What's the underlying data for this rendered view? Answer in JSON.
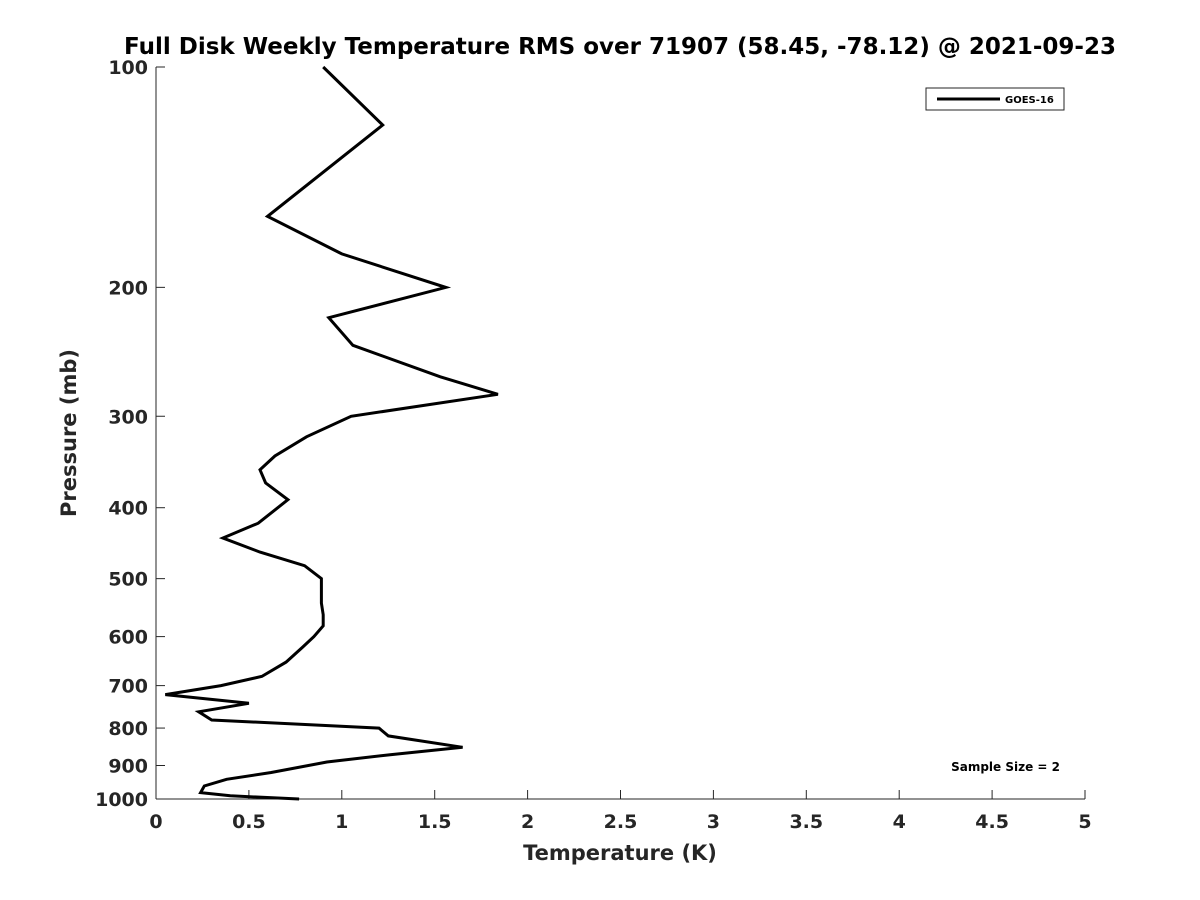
{
  "chart_data": {
    "type": "line",
    "title": "Full Disk Weekly Temperature RMS over 71907 (58.45, -78.12) @ 2021-09-23",
    "xlabel": "Temperature (K)",
    "ylabel": "Pressure (mb)",
    "xlim": [
      0,
      5
    ],
    "ylim": [
      1000,
      100
    ],
    "y_scale": "log",
    "y_direction": "reversed",
    "grid": false,
    "legend_position": "top-right",
    "x_ticks": [
      0,
      0.5,
      1,
      1.5,
      2,
      2.5,
      3,
      3.5,
      4,
      4.5,
      5
    ],
    "x_tick_labels": [
      "0",
      "0.5",
      "1",
      "1.5",
      "2",
      "2.5",
      "3",
      "3.5",
      "4",
      "4.5",
      "5"
    ],
    "y_ticks": [
      100,
      200,
      300,
      400,
      500,
      600,
      700,
      800,
      900,
      1000
    ],
    "y_tick_labels": [
      "100",
      "200",
      "300",
      "400",
      "500",
      "600",
      "700",
      "800",
      "900",
      "1000"
    ],
    "series": [
      {
        "name": "GOES-16",
        "color": "#000000",
        "x": [
          0.9,
          1.22,
          0.6,
          1.0,
          1.56,
          0.93,
          1.06,
          1.53,
          1.84,
          1.05,
          0.81,
          0.64,
          0.56,
          0.59,
          0.71,
          0.55,
          0.36,
          0.56,
          0.8,
          0.89,
          0.89,
          0.89,
          0.9,
          0.9,
          0.85,
          0.79,
          0.7,
          0.57,
          0.35,
          0.05,
          0.5,
          0.23,
          0.3,
          1.2,
          1.25,
          1.65,
          1.26,
          0.92,
          0.62,
          0.38,
          0.26,
          0.24,
          0.4,
          0.77
        ],
        "y": [
          100,
          120,
          160,
          180,
          200,
          220,
          240,
          265,
          280,
          300,
          320,
          340,
          355,
          370,
          390,
          420,
          440,
          460,
          480,
          500,
          520,
          540,
          560,
          580,
          600,
          620,
          650,
          680,
          700,
          720,
          740,
          760,
          780,
          800,
          820,
          850,
          870,
          890,
          920,
          940,
          960,
          980,
          990,
          1000
        ]
      }
    ],
    "annotations": [
      "Sample Size = 2"
    ]
  }
}
